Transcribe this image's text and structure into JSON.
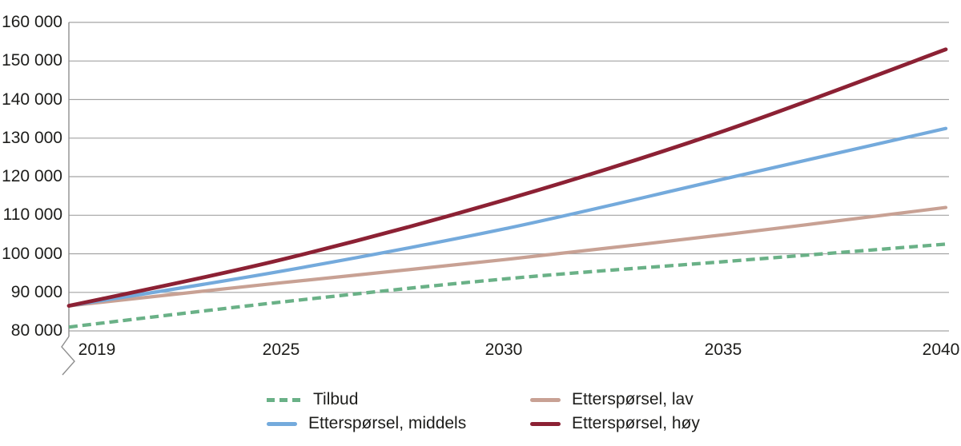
{
  "chart_data": {
    "type": "line",
    "title": "",
    "x_years": [
      2019,
      2025,
      2030,
      2035,
      2040
    ],
    "x_tick_labels": [
      "2019",
      "2025",
      "2030",
      "2035",
      "2040"
    ],
    "y_tick_labels": [
      "160 000",
      "150 000",
      "140 000",
      "130 000",
      "120 000",
      "110 000",
      "100 000",
      "90 000",
      "80 000"
    ],
    "y_tick_values": [
      160000,
      150000,
      140000,
      130000,
      120000,
      110000,
      100000,
      90000,
      80000
    ],
    "ylim": [
      80000,
      160000
    ],
    "y_axis_break": true,
    "grid": "horizontal-only",
    "legend_position": "bottom-two-columns",
    "series": [
      {
        "name": "Tilbud",
        "color": "#6ab187",
        "style": "dashed",
        "values": [
          81000,
          87500,
          93500,
          98000,
          102500
        ]
      },
      {
        "name": "Etterspørsel, lav",
        "color": "#c8a194",
        "style": "solid",
        "values": [
          86500,
          92500,
          98500,
          105000,
          112000
        ]
      },
      {
        "name": "Etterspørsel, middels",
        "color": "#74aadc",
        "style": "solid",
        "values": [
          86500,
          95500,
          106500,
          119500,
          132500
        ]
      },
      {
        "name": "Etterspørsel, høy",
        "color": "#8c2134",
        "style": "solid",
        "values": [
          86500,
          98500,
          114000,
          132000,
          153000
        ]
      }
    ]
  },
  "colors": {
    "background": "#ffffff",
    "gridline": "#a3a3a3",
    "axis": "#8f8f8f",
    "text": "#1d1d1b"
  }
}
